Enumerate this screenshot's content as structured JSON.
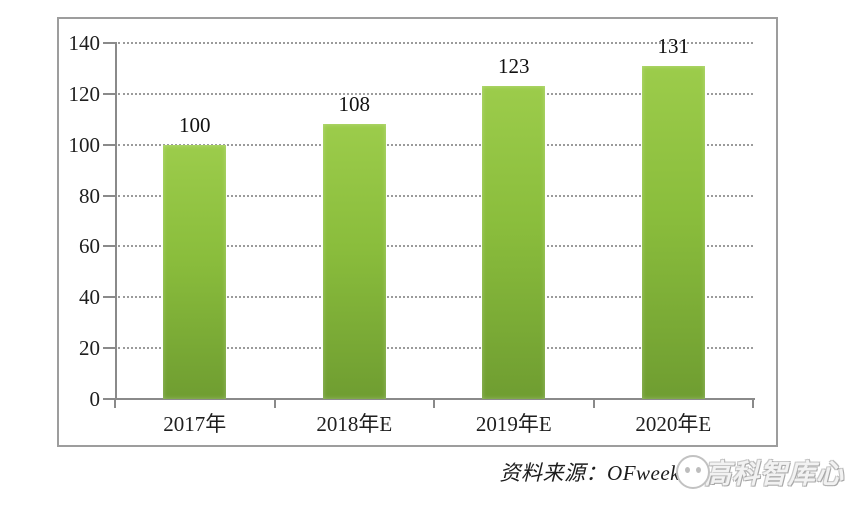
{
  "chart_data": {
    "type": "bar",
    "title": "",
    "categories": [
      "2017年",
      "2018年E",
      "2019年E",
      "2020年E"
    ],
    "values": [
      100,
      108,
      123,
      131
    ],
    "bar_value_labels": [
      "100",
      "108",
      "123",
      "131"
    ],
    "ylim": [
      0,
      140
    ],
    "ytick_step": 20,
    "yticks": [
      0,
      20,
      40,
      60,
      80,
      100,
      120,
      140
    ],
    "grid": "horizontal dotted",
    "legend": "none",
    "bar_color_top": "#9ccc4b",
    "bar_color_bottom": "#6f9d31",
    "axis_color": "#8a8a8a",
    "gridline_color": "#9b9b9b",
    "frame_border_color": "#9d9d9d",
    "label_color": "#1f1f1f"
  },
  "source": {
    "label": "资料来源：OFweek",
    "watermark_text": "高科智库心"
  }
}
